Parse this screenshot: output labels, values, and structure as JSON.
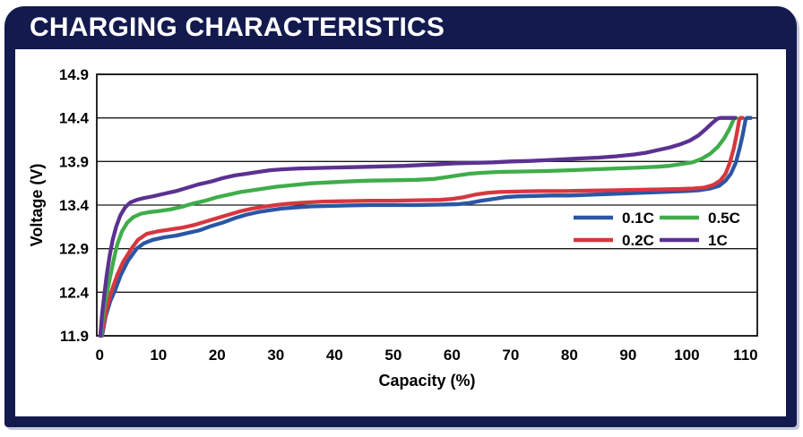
{
  "header": {
    "title": "CHARGING CHARACTERISTICS"
  },
  "colors": {
    "panel_navy": "#131a4e",
    "plot_border": "#111111",
    "grid_line": "#1a1a1a",
    "tick_text": "#000000"
  },
  "chart_data": {
    "type": "line",
    "title": "CHARGING CHARACTERISTICS",
    "xlabel": "Capacity (%)",
    "ylabel": "Voltage (V)",
    "xlim": [
      -0.5,
      112
    ],
    "ylim": [
      11.9,
      14.9
    ],
    "x_ticks": [
      0,
      10,
      20,
      30,
      40,
      50,
      60,
      70,
      80,
      90,
      100,
      110
    ],
    "y_ticks": [
      11.9,
      12.4,
      12.9,
      13.4,
      13.9,
      14.4,
      14.9
    ],
    "grid": "horizontal",
    "legend_position": "inside-right",
    "legend_rows": [
      [
        "0.1C",
        "0.5C"
      ],
      [
        "0.2C",
        "1C"
      ]
    ],
    "series": [
      {
        "name": "0.1C",
        "color": "#2b56a4",
        "points": [
          [
            0.4,
            11.9
          ],
          [
            1,
            12.12
          ],
          [
            1.8,
            12.3
          ],
          [
            2.6,
            12.42
          ],
          [
            3.6,
            12.6
          ],
          [
            4.8,
            12.76
          ],
          [
            6.3,
            12.9
          ],
          [
            7.5,
            12.96
          ],
          [
            9,
            13.0
          ],
          [
            11,
            13.03
          ],
          [
            13,
            13.05
          ],
          [
            15,
            13.08
          ],
          [
            17,
            13.11
          ],
          [
            19,
            13.16
          ],
          [
            21,
            13.2
          ],
          [
            23,
            13.25
          ],
          [
            25,
            13.29
          ],
          [
            27,
            13.32
          ],
          [
            29,
            13.34
          ],
          [
            31,
            13.36
          ],
          [
            33,
            13.37
          ],
          [
            36,
            13.385
          ],
          [
            39,
            13.39
          ],
          [
            42,
            13.395
          ],
          [
            46,
            13.4
          ],
          [
            50,
            13.4
          ],
          [
            54,
            13.4
          ],
          [
            58,
            13.405
          ],
          [
            61,
            13.41
          ],
          [
            63,
            13.425
          ],
          [
            65,
            13.45
          ],
          [
            67,
            13.47
          ],
          [
            69,
            13.49
          ],
          [
            71,
            13.5
          ],
          [
            74,
            13.505
          ],
          [
            77,
            13.51
          ],
          [
            80,
            13.51
          ],
          [
            84,
            13.52
          ],
          [
            88,
            13.53
          ],
          [
            92,
            13.54
          ],
          [
            96,
            13.55
          ],
          [
            100,
            13.56
          ],
          [
            102,
            13.57
          ],
          [
            104,
            13.59
          ],
          [
            105.5,
            13.62
          ],
          [
            106.6,
            13.68
          ],
          [
            107.5,
            13.76
          ],
          [
            108.3,
            13.88
          ],
          [
            109,
            14.05
          ],
          [
            109.5,
            14.2
          ],
          [
            110,
            14.38
          ],
          [
            110.2,
            14.4
          ],
          [
            110.9,
            14.4
          ]
        ]
      },
      {
        "name": "0.2C",
        "color": "#d6373f",
        "points": [
          [
            0.3,
            11.9
          ],
          [
            0.9,
            12.12
          ],
          [
            1.5,
            12.3
          ],
          [
            2.2,
            12.45
          ],
          [
            3,
            12.6
          ],
          [
            4,
            12.75
          ],
          [
            5.4,
            12.9
          ],
          [
            6.5,
            13.0
          ],
          [
            8,
            13.07
          ],
          [
            10,
            13.1
          ],
          [
            12,
            13.12
          ],
          [
            14,
            13.14
          ],
          [
            16,
            13.17
          ],
          [
            18,
            13.21
          ],
          [
            20,
            13.25
          ],
          [
            22,
            13.29
          ],
          [
            24,
            13.33
          ],
          [
            26,
            13.36
          ],
          [
            28,
            13.38
          ],
          [
            30,
            13.4
          ],
          [
            32,
            13.415
          ],
          [
            35,
            13.43
          ],
          [
            38,
            13.44
          ],
          [
            42,
            13.445
          ],
          [
            46,
            13.45
          ],
          [
            50,
            13.45
          ],
          [
            54,
            13.455
          ],
          [
            58,
            13.46
          ],
          [
            60,
            13.47
          ],
          [
            62,
            13.49
          ],
          [
            64,
            13.52
          ],
          [
            66,
            13.54
          ],
          [
            68,
            13.55
          ],
          [
            71,
            13.555
          ],
          [
            75,
            13.56
          ],
          [
            79,
            13.56
          ],
          [
            83,
            13.565
          ],
          [
            87,
            13.57
          ],
          [
            91,
            13.575
          ],
          [
            95,
            13.58
          ],
          [
            99,
            13.585
          ],
          [
            101,
            13.59
          ],
          [
            103,
            13.6
          ],
          [
            104.5,
            13.63
          ],
          [
            105.7,
            13.68
          ],
          [
            106.6,
            13.76
          ],
          [
            107.3,
            13.88
          ],
          [
            108,
            14.05
          ],
          [
            108.5,
            14.22
          ],
          [
            108.9,
            14.37
          ],
          [
            109.1,
            14.4
          ],
          [
            109.5,
            14.4
          ]
        ]
      },
      {
        "name": "0.5C",
        "color": "#3fad4a",
        "points": [
          [
            0.2,
            11.9
          ],
          [
            0.6,
            12.15
          ],
          [
            1.1,
            12.35
          ],
          [
            1.7,
            12.55
          ],
          [
            2.4,
            12.78
          ],
          [
            3,
            12.95
          ],
          [
            3.8,
            13.1
          ],
          [
            4.7,
            13.2
          ],
          [
            5.7,
            13.26
          ],
          [
            7,
            13.3
          ],
          [
            8.5,
            13.32
          ],
          [
            10,
            13.33
          ],
          [
            12,
            13.35
          ],
          [
            14,
            13.38
          ],
          [
            16,
            13.42
          ],
          [
            18,
            13.45
          ],
          [
            20,
            13.49
          ],
          [
            22,
            13.52
          ],
          [
            24,
            13.55
          ],
          [
            26,
            13.57
          ],
          [
            28,
            13.59
          ],
          [
            30,
            13.61
          ],
          [
            33,
            13.63
          ],
          [
            36,
            13.65
          ],
          [
            39,
            13.66
          ],
          [
            42,
            13.67
          ],
          [
            46,
            13.68
          ],
          [
            50,
            13.685
          ],
          [
            54,
            13.69
          ],
          [
            57,
            13.7
          ],
          [
            59,
            13.72
          ],
          [
            61,
            13.74
          ],
          [
            63,
            13.76
          ],
          [
            65,
            13.77
          ],
          [
            68,
            13.78
          ],
          [
            72,
            13.785
          ],
          [
            76,
            13.79
          ],
          [
            80,
            13.8
          ],
          [
            84,
            13.81
          ],
          [
            88,
            13.82
          ],
          [
            92,
            13.83
          ],
          [
            95,
            13.84
          ],
          [
            97,
            13.85
          ],
          [
            99,
            13.87
          ],
          [
            101,
            13.89
          ],
          [
            102.5,
            13.93
          ],
          [
            104,
            13.99
          ],
          [
            105.3,
            14.07
          ],
          [
            106.4,
            14.17
          ],
          [
            107.3,
            14.28
          ],
          [
            107.9,
            14.37
          ],
          [
            108.1,
            14.4
          ],
          [
            108.4,
            14.4
          ]
        ]
      },
      {
        "name": "1C",
        "color": "#5b3191",
        "points": [
          [
            0.1,
            11.9
          ],
          [
            0.4,
            12.15
          ],
          [
            0.8,
            12.38
          ],
          [
            1.2,
            12.6
          ],
          [
            1.7,
            12.82
          ],
          [
            2.2,
            13.0
          ],
          [
            2.8,
            13.15
          ],
          [
            3.5,
            13.28
          ],
          [
            4.3,
            13.37
          ],
          [
            5.2,
            13.43
          ],
          [
            6.3,
            13.46
          ],
          [
            7.5,
            13.48
          ],
          [
            9,
            13.5
          ],
          [
            11,
            13.53
          ],
          [
            13,
            13.56
          ],
          [
            15,
            13.6
          ],
          [
            17,
            13.64
          ],
          [
            19,
            13.67
          ],
          [
            21,
            13.71
          ],
          [
            23,
            13.74
          ],
          [
            25,
            13.76
          ],
          [
            27,
            13.78
          ],
          [
            29,
            13.8
          ],
          [
            31,
            13.81
          ],
          [
            34,
            13.82
          ],
          [
            37,
            13.825
          ],
          [
            40,
            13.83
          ],
          [
            43,
            13.835
          ],
          [
            46,
            13.84
          ],
          [
            49,
            13.845
          ],
          [
            52,
            13.85
          ],
          [
            55,
            13.86
          ],
          [
            58,
            13.87
          ],
          [
            61,
            13.88
          ],
          [
            64,
            13.885
          ],
          [
            67,
            13.89
          ],
          [
            70,
            13.9
          ],
          [
            73,
            13.905
          ],
          [
            76,
            13.915
          ],
          [
            79,
            13.925
          ],
          [
            82,
            13.935
          ],
          [
            85,
            13.945
          ],
          [
            88,
            13.96
          ],
          [
            91,
            13.98
          ],
          [
            93,
            14.0
          ],
          [
            95,
            14.03
          ],
          [
            97,
            14.06
          ],
          [
            99,
            14.1
          ],
          [
            100.5,
            14.14
          ],
          [
            102,
            14.2
          ],
          [
            103.2,
            14.27
          ],
          [
            104.3,
            14.34
          ],
          [
            105.2,
            14.39
          ],
          [
            105.7,
            14.4
          ],
          [
            108.2,
            14.4
          ]
        ]
      }
    ]
  }
}
